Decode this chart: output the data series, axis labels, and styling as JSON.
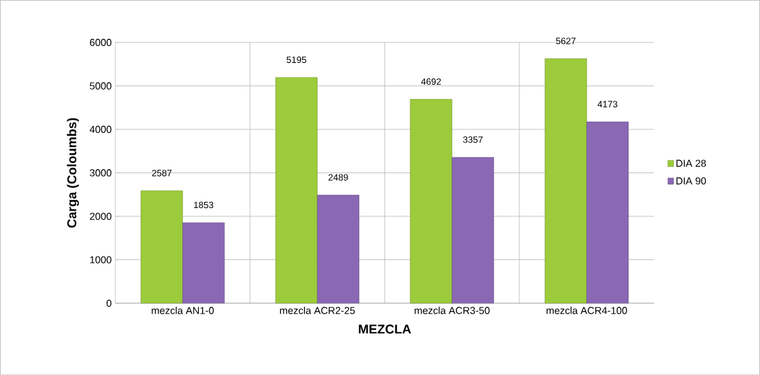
{
  "chart_data": {
    "type": "bar",
    "xlabel": "MEZCLA",
    "ylabel": "Carga  (Coloumbs)",
    "categories": [
      "mezcla AN1-0",
      "mezcla ACR2-25",
      "mezcla ACR3-50",
      "mezcla ACR4-100"
    ],
    "series": [
      {
        "name": "DIA 28",
        "color": "#9ccb3b",
        "values": [
          2587,
          5195,
          4692,
          5627
        ]
      },
      {
        "name": "DIA 90",
        "color": "#8a68b4",
        "values": [
          1853,
          2489,
          3357,
          4173
        ]
      }
    ],
    "ylim": [
      0,
      6000
    ],
    "yticks": [
      0,
      1000,
      2000,
      3000,
      4000,
      5000,
      6000
    ],
    "grid": true,
    "legend": "right",
    "data_labels": true
  }
}
